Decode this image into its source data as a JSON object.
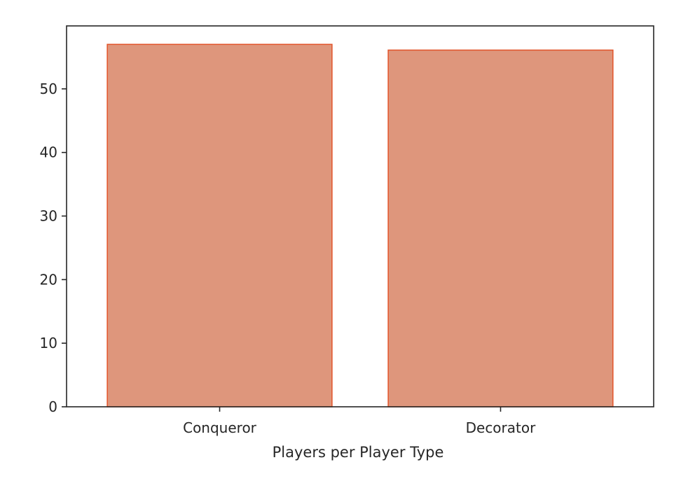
{
  "chart_data": {
    "type": "bar",
    "categories": [
      "Conqueror",
      "Decorator"
    ],
    "values": [
      57,
      56.1
    ],
    "xlabel": "Players per Player Type",
    "ylabel": "",
    "ylim": [
      0,
      59.9
    ],
    "yticks": [
      0,
      10,
      20,
      30,
      40,
      50
    ],
    "grid": false,
    "colors": {
      "bar_fill": "#de967c",
      "bar_edge": "#e2542a",
      "axis": "#262626"
    }
  }
}
